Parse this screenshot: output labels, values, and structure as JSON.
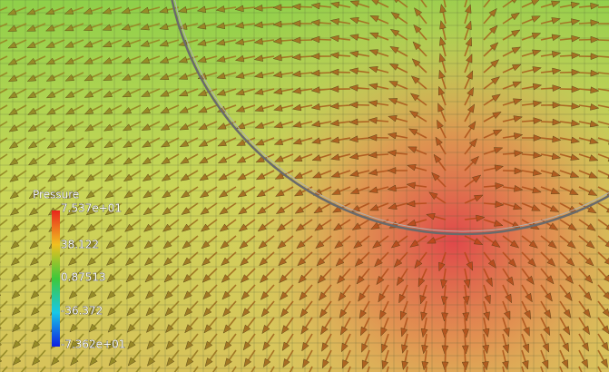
{
  "legend": {
    "title": "Pressure",
    "labels": [
      "7.537e+01",
      "38.122",
      "0.87513",
      "-36.372",
      "-7.362e+01"
    ]
  }
}
